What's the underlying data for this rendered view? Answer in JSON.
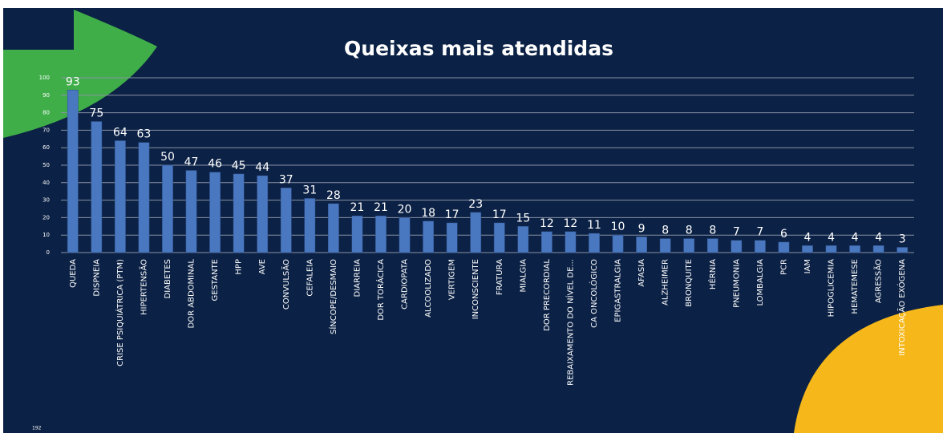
{
  "chart_data": {
    "type": "bar",
    "title": "Queixas mais atendidas",
    "categories": [
      "QUEDA",
      "DISPNEIA",
      "CRISE PSIQUIÁTRICA (PTM)",
      "HIPERTENSÃO",
      "DIABETES",
      "DOR ABDOMINAL",
      "GESTANTE",
      "HPP",
      "AVE",
      "CONVULSÃO",
      "CEFALEIA",
      "SÍNCOPE/DESMAIO",
      "DIARREIA",
      "DOR TORÁCICA",
      "CARDIOPATA",
      "ALCOOLIZADO",
      "VERTIGEM",
      "INCONSCIENTE",
      "FRATURA",
      "MIALGIA",
      "DOR PRECORDIAL",
      "REBAIXAMENTO DO NÍVEL DE...",
      "CA ONCOLÓGICO",
      "EPIGASTRALGIA",
      "AFASIA",
      "ALZHEIMER",
      "BRONQUITE",
      "HÉRNIA",
      "PNEUMONIA",
      "LOMBALGIA",
      "PCR",
      "IAM",
      "HIPOGLICEMIA",
      "HEMATEMESE",
      "AGRESSÃO",
      "INTOXICAÇÃO EXÓGENA"
    ],
    "values": [
      93,
      75,
      64,
      63,
      50,
      47,
      46,
      45,
      44,
      37,
      31,
      28,
      21,
      21,
      20,
      18,
      17,
      23,
      17,
      15,
      12,
      12,
      11,
      10,
      9,
      8,
      8,
      8,
      7,
      7,
      6,
      4,
      4,
      4,
      4,
      3
    ],
    "color": "#4a78c0",
    "ylim": [
      0,
      100
    ],
    "yticks": [
      0,
      10,
      20,
      30,
      40,
      50,
      60,
      70,
      80,
      90,
      100
    ],
    "grid": true,
    "page_number": "192"
  }
}
